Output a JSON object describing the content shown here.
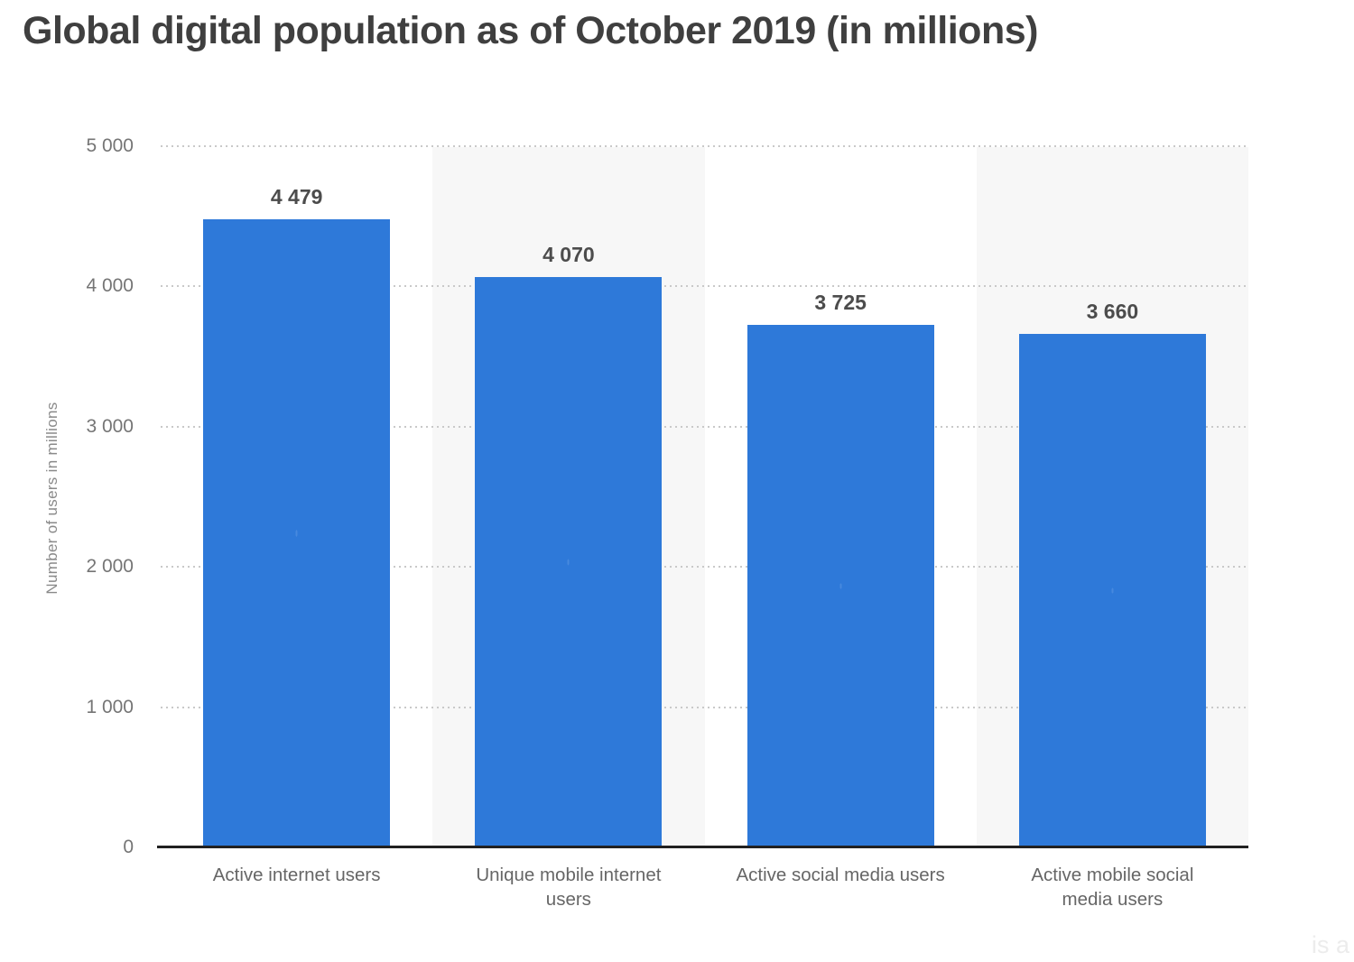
{
  "page": {
    "watermark_fragment": "is a"
  },
  "chart_data": {
    "type": "bar",
    "title": "Global digital population as of October 2019 (in millions)",
    "categories": [
      "Active internet users",
      "Unique mobile internet users",
      "Active social media users",
      "Active mobile social media users"
    ],
    "category_lines": [
      [
        "Active internet users"
      ],
      [
        "Unique mobile internet",
        "users"
      ],
      [
        "Active social media users"
      ],
      [
        "Active mobile social",
        "media users"
      ]
    ],
    "values": [
      4479,
      4070,
      3725,
      3660
    ],
    "value_labels": [
      "4 479",
      "4 070",
      "3 725",
      "3 660"
    ],
    "xlabel": "",
    "ylabel": "Number of users in millions",
    "ylim": [
      0,
      5000
    ],
    "yticks": [
      {
        "value": 5000,
        "label": "5 000"
      },
      {
        "value": 4000,
        "label": "4 000"
      },
      {
        "value": 3000,
        "label": "3 000"
      },
      {
        "value": 2000,
        "label": "2 000"
      },
      {
        "value": 1000,
        "label": "1 000"
      },
      {
        "value": 0,
        "label": "0"
      }
    ],
    "grid": "horizontal-dotted",
    "legend": "none",
    "colors": {
      "bar": "#2e79d9",
      "band": "#f7f7f7",
      "grid": "#c9c9c9",
      "axis": "#212121"
    }
  }
}
